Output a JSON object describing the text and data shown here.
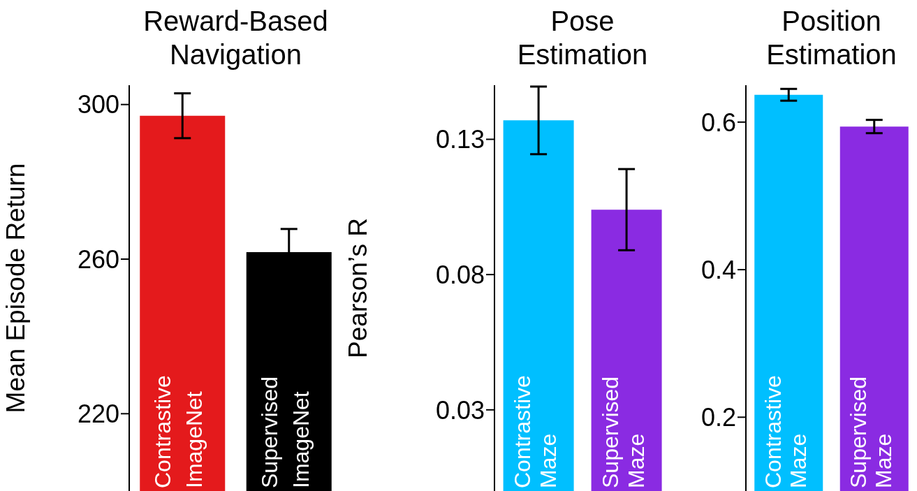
{
  "chart_data": [
    {
      "type": "bar",
      "title": "Reward-Based Navigation",
      "ylabel": "Mean Episode Return",
      "categories": [
        "Contrastive ImageNet",
        "Supervised ImageNet"
      ],
      "values": [
        297.1,
        261.8
      ],
      "colors": [
        "#e41a1c",
        "#000000"
      ],
      "errors": [
        5.8,
        6
      ],
      "ylim": [
        200,
        305
      ],
      "yticks": [
        220,
        260,
        300
      ]
    },
    {
      "type": "bar",
      "title": "Pose Estimation",
      "ylabel": "Pearson’s R",
      "categories": [
        "Contrastive Maze",
        "Supervised Maze"
      ],
      "values": [
        0.137,
        0.104
      ],
      "colors": [
        "#00bfff",
        "#8a2be2"
      ],
      "errors": [
        0.0125,
        0.015
      ],
      "ylim": [
        0,
        0.15
      ],
      "yticks": [
        0.03,
        0.08,
        0.13
      ]
    },
    {
      "type": "bar",
      "title": "Position Estimation",
      "categories": [
        "Contrastive Maze",
        "Supervised Maze"
      ],
      "values": [
        0.637,
        0.594
      ],
      "colors": [
        "#00bfff",
        "#8a2be2"
      ],
      "errors": [
        0.008,
        0.009
      ],
      "ylim": [
        0.1,
        0.65
      ],
      "yticks": [
        0.2,
        0.4,
        0.6
      ]
    }
  ]
}
